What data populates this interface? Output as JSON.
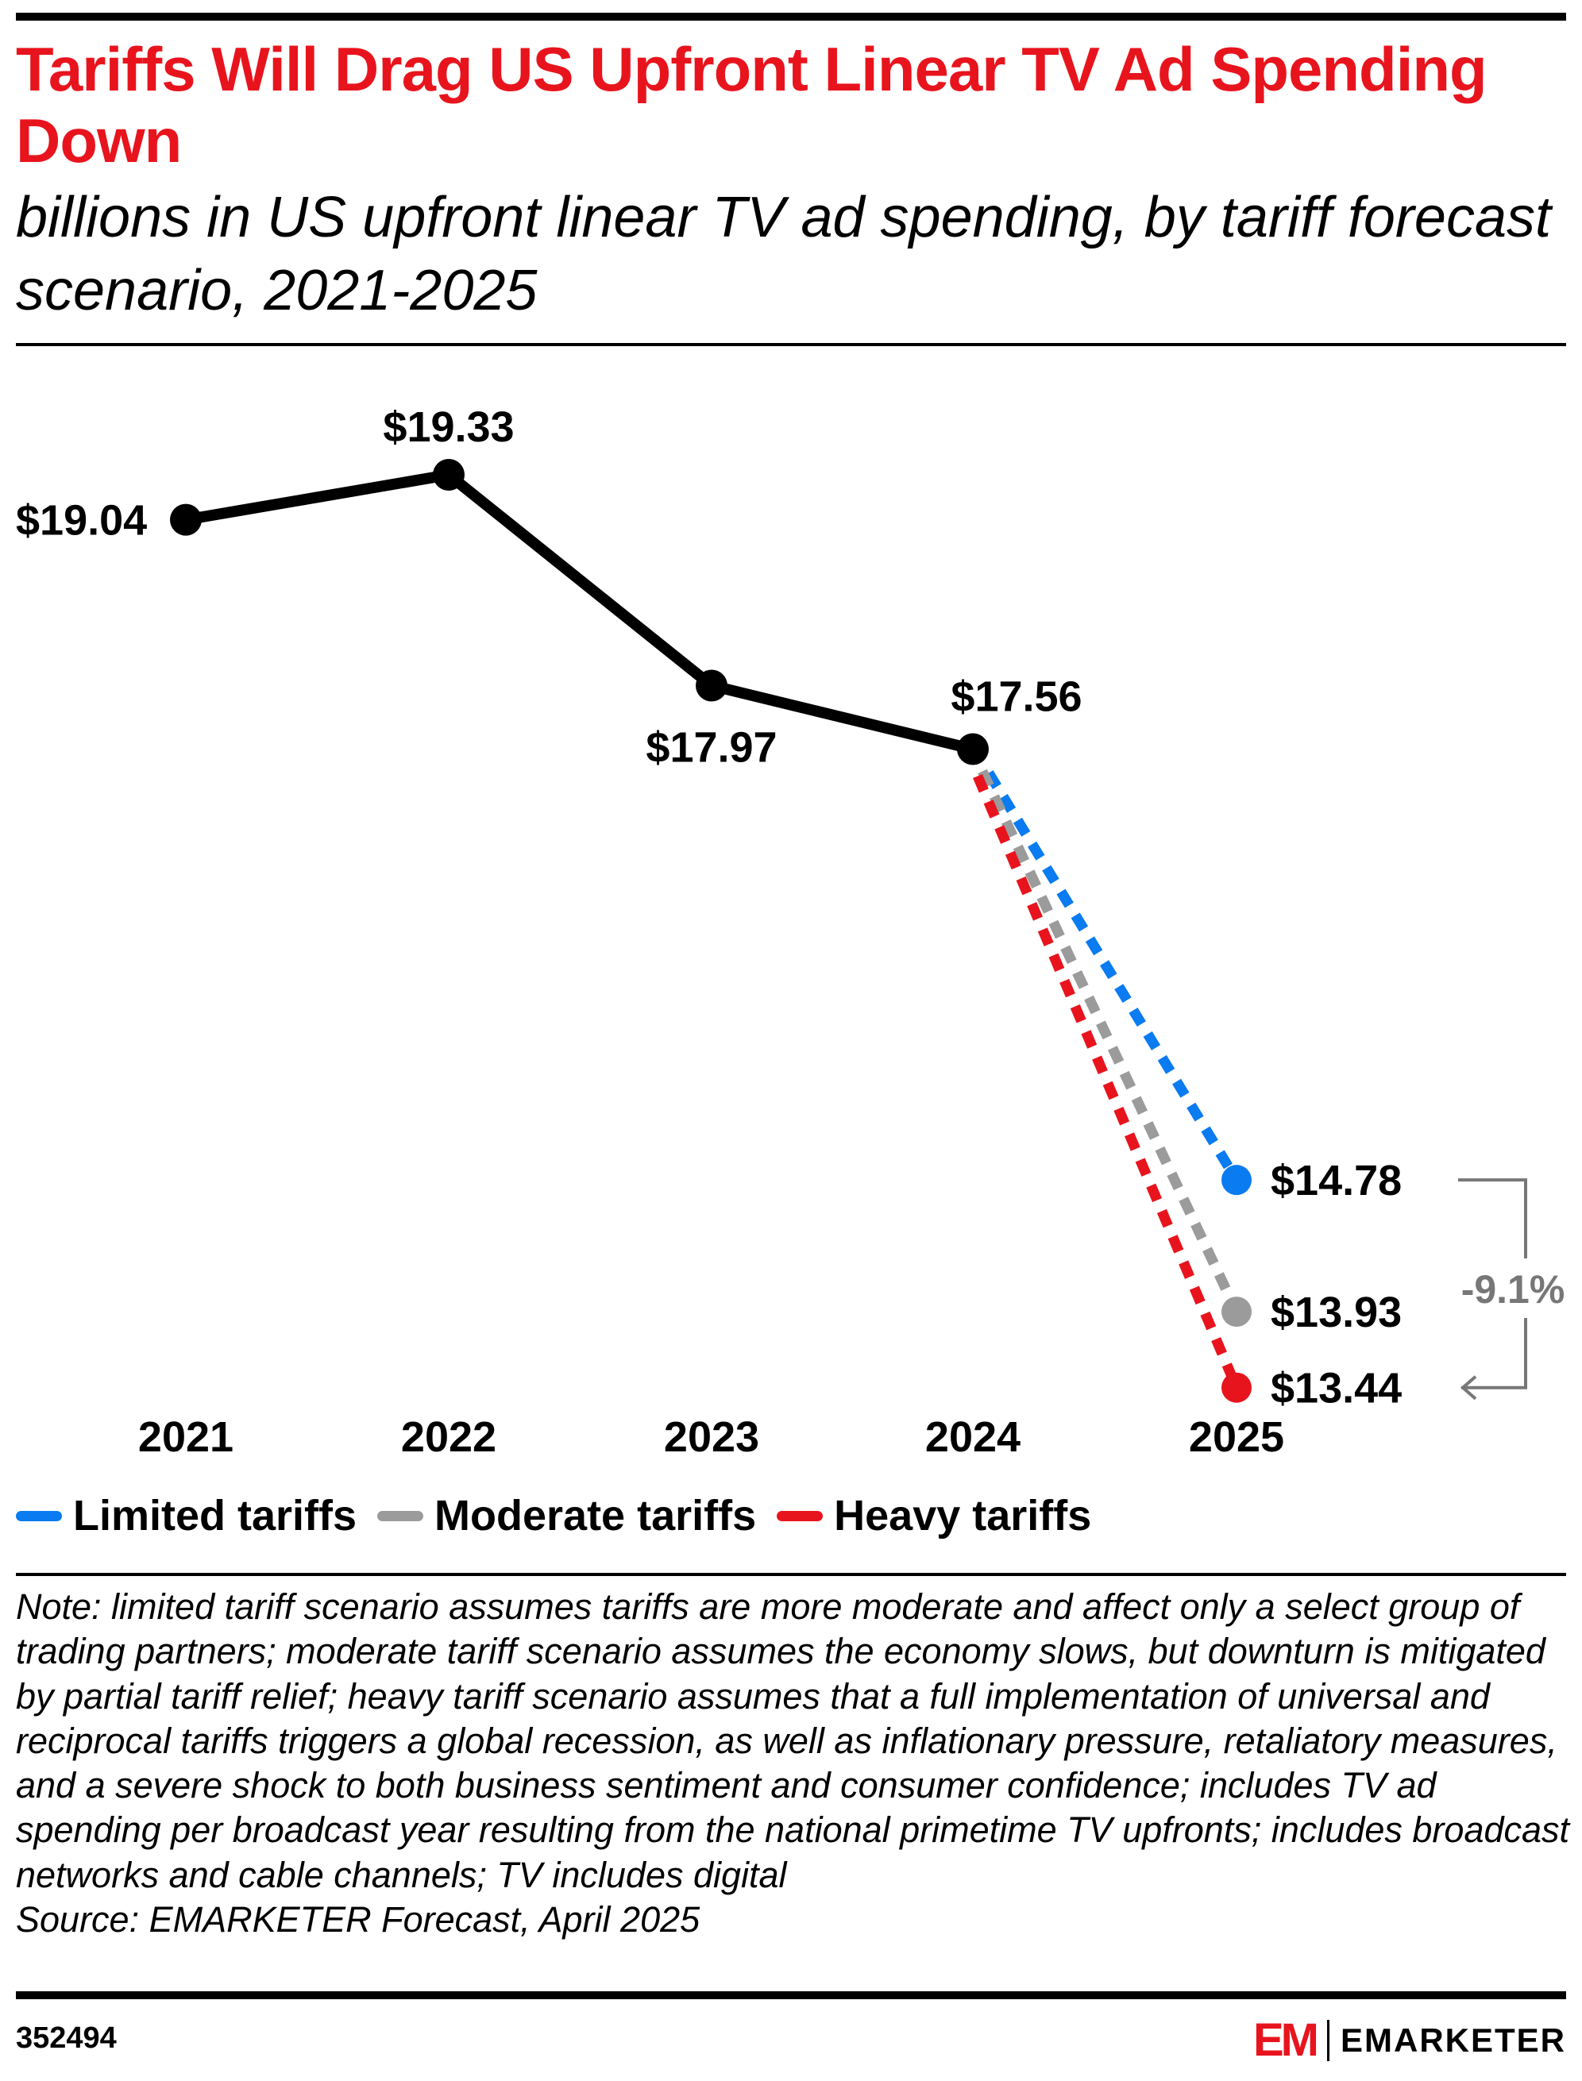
{
  "title": "Tariffs Will Drag US Upfront Linear TV Ad Spending Down",
  "subtitle": "billions in US upfront linear TV ad spending, by tariff forecast scenario, 2021-2025",
  "chart_data": {
    "type": "line",
    "title": "Tariffs Will Drag US Upfront Linear TV Ad Spending Down",
    "subtitle": "billions in US upfront linear TV ad spending, by tariff forecast scenario, 2021-2025",
    "categories": [
      "2021",
      "2022",
      "2023",
      "2024",
      "2025"
    ],
    "historical": {
      "values": [
        19.04,
        19.33,
        17.97,
        17.56
      ],
      "labels": [
        "$19.04",
        "$19.33",
        "$17.97",
        "$17.56"
      ],
      "color": "#000000"
    },
    "series": [
      {
        "name": "Limited tariffs",
        "values": [
          null,
          null,
          null,
          17.56,
          14.78
        ],
        "label": "$14.78",
        "color": "#0a7bf0",
        "style": "dotted"
      },
      {
        "name": "Moderate tariffs",
        "values": [
          null,
          null,
          null,
          17.56,
          13.93
        ],
        "label": "$13.93",
        "color": "#9b9b9b",
        "style": "dotted"
      },
      {
        "name": "Heavy tariffs",
        "values": [
          null,
          null,
          null,
          17.56,
          13.44
        ],
        "label": "$13.44",
        "color": "#e8141d",
        "style": "dotted"
      }
    ],
    "annotation": {
      "text": "-9.1%",
      "from": "Limited tariffs",
      "to": "Heavy tariffs",
      "color": "#777777"
    },
    "legend": "bottom-left",
    "grid": false,
    "y_axis_visible": false
  },
  "note": "Note: limited tariff scenario assumes tariffs are more moderate and affect only a select group of trading partners; moderate tariff scenario assumes the economy slows, but downturn is mitigated by partial tariff relief; heavy tariff scenario assumes that a full implementation of universal and reciprocal tariffs triggers a global recession, as well as inflationary pressure, retaliatory measures, and a severe shock to both business sentiment and consumer confidence; includes TV ad spending per broadcast year resulting from the national primetime TV upfronts; includes broadcast networks and cable channels; TV includes digital",
  "source": "Source: EMARKETER Forecast, April 2025",
  "chart_id": "352494",
  "brand": {
    "mark": "EM",
    "name": "EMARKETER",
    "color": "#e8141d"
  }
}
